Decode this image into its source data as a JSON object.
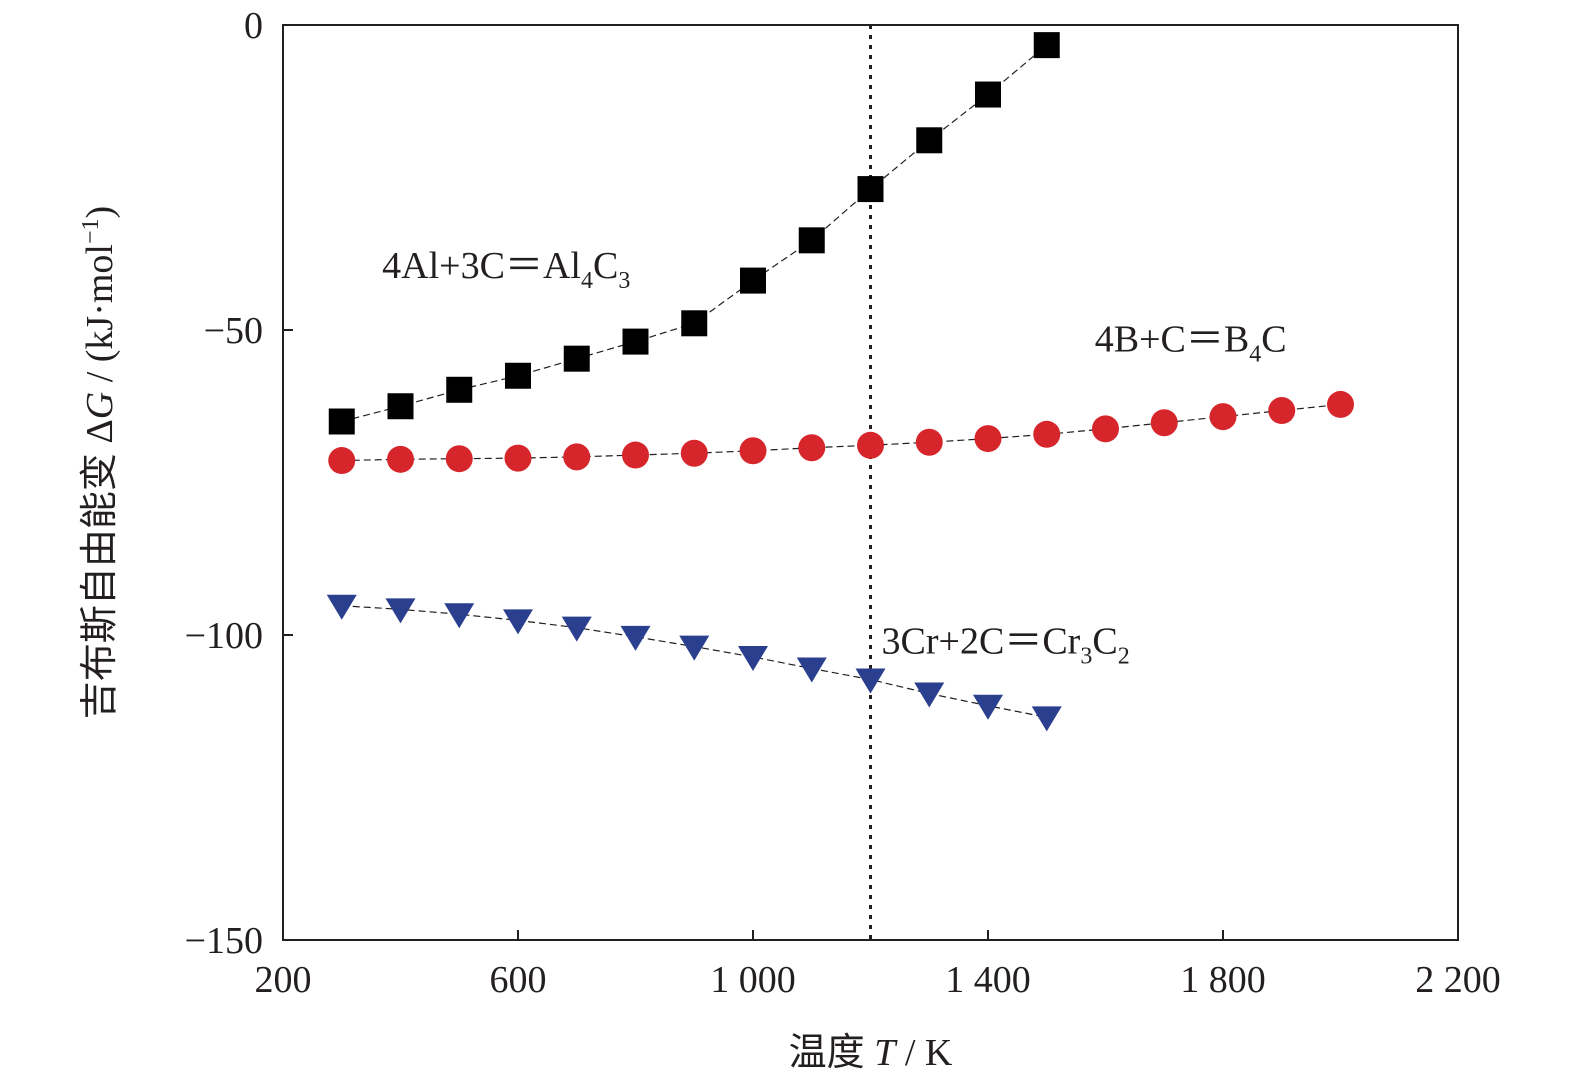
{
  "chart_data": {
    "type": "scatter",
    "xlabel": {
      "prefix": "温度 ",
      "var": "T",
      "suffix": " / K"
    },
    "ylabel": {
      "prefix": "吉布斯自由能变 Δ",
      "var": "G",
      "suffix": " / (kJ·mol",
      "sup": "−1",
      "close": ")"
    },
    "xlim": [
      200,
      2200
    ],
    "ylim": [
      -150,
      0
    ],
    "x_ticks": [
      200,
      600,
      1000,
      1400,
      1800,
      2200
    ],
    "x_tick_labels": [
      "200",
      "600",
      "1 000",
      "1 400",
      "1 800",
      "2 200"
    ],
    "y_ticks": [
      0,
      -50,
      -100,
      -150
    ],
    "y_tick_labels": [
      "0",
      "−50",
      "−100",
      "−150"
    ],
    "grid": false,
    "reference_line": {
      "x": 1200,
      "style": "dotted"
    },
    "series": [
      {
        "marker": "square",
        "color": "#000000",
        "x": [
          300,
          400,
          500,
          600,
          700,
          800,
          900,
          1000,
          1100,
          1200,
          1300,
          1400,
          1500
        ],
        "values": [
          -65,
          -62.5,
          -59.8,
          -57.5,
          -54.7,
          -51.9,
          -48.9,
          -41.9,
          -35.3,
          -26.9,
          -18.9,
          -11.4,
          -3.3
        ]
      },
      {
        "marker": "circle",
        "color": "#d7262b",
        "x": [
          300,
          400,
          500,
          600,
          700,
          800,
          900,
          1000,
          1100,
          1200,
          1300,
          1400,
          1500,
          1600,
          1700,
          1800,
          1900,
          2000
        ],
        "values": [
          -71.4,
          -71.2,
          -71.1,
          -71.0,
          -70.8,
          -70.5,
          -70.2,
          -69.8,
          -69.3,
          -68.9,
          -68.4,
          -67.8,
          -67.1,
          -66.2,
          -65.2,
          -64.2,
          -63.2,
          -62.2
        ]
      },
      {
        "marker": "triangle-down",
        "color": "#2b3f8f",
        "x": [
          300,
          400,
          500,
          600,
          700,
          800,
          900,
          1000,
          1100,
          1200,
          1300,
          1400,
          1500
        ],
        "values": [
          -95.2,
          -95.8,
          -96.6,
          -97.6,
          -98.8,
          -100.3,
          -101.9,
          -103.6,
          -105.5,
          -107.3,
          -109.6,
          -111.6,
          -113.5
        ]
      }
    ],
    "annotations": [
      {
        "parts": [
          [
            "4Al+3C＝Al",
            ""
          ],
          [
            "4",
            "sub"
          ],
          [
            "C",
            ""
          ],
          [
            "3",
            "sub"
          ]
        ],
        "x": 580,
        "y": -41.5
      },
      {
        "parts": [
          [
            "4B+C＝B",
            ""
          ],
          [
            "4",
            "sub"
          ],
          [
            "C",
            ""
          ]
        ],
        "x": 1745,
        "y": -53.5
      },
      {
        "parts": [
          [
            "3Cr+2C＝Cr",
            ""
          ],
          [
            "3",
            "sub"
          ],
          [
            "C",
            ""
          ],
          [
            "2",
            "sub"
          ]
        ],
        "x": 1430,
        "y": -103
      }
    ]
  }
}
